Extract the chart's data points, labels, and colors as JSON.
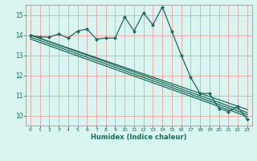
{
  "bg_color": "#d8f5f0",
  "grid_color": "#f0a0a0",
  "line_color": "#1a6b5a",
  "marker": "D",
  "markersize": 2.5,
  "linewidth": 0.9,
  "xlabel": "Humidex (Indice chaleur)",
  "xlim": [
    -0.5,
    23.5
  ],
  "ylim": [
    9.5,
    15.5
  ],
  "yticks": [
    10,
    11,
    12,
    13,
    14,
    15
  ],
  "xticks": [
    0,
    1,
    2,
    3,
    4,
    5,
    6,
    7,
    8,
    9,
    10,
    11,
    12,
    13,
    14,
    15,
    16,
    17,
    18,
    19,
    20,
    21,
    22,
    23
  ],
  "line1_x": [
    0,
    1,
    2,
    3,
    4,
    5,
    6,
    7,
    8,
    9,
    10,
    11,
    12,
    13,
    14,
    15,
    16,
    17,
    18,
    19,
    20,
    21,
    22,
    23
  ],
  "line1_y": [
    14.0,
    13.9,
    13.9,
    14.05,
    13.85,
    14.2,
    14.3,
    13.8,
    13.85,
    13.85,
    14.9,
    14.2,
    15.1,
    14.5,
    15.4,
    14.2,
    13.0,
    11.9,
    11.1,
    11.1,
    10.35,
    10.2,
    10.45,
    9.8
  ],
  "line2_x": [
    0,
    23
  ],
  "line2_y": [
    14.0,
    10.3
  ],
  "line3_x": [
    0,
    23
  ],
  "line3_y": [
    14.0,
    10.15
  ],
  "line4_x": [
    0,
    23
  ],
  "line4_y": [
    13.9,
    10.05
  ],
  "line5_x": [
    0,
    23
  ],
  "line5_y": [
    13.8,
    9.95
  ]
}
